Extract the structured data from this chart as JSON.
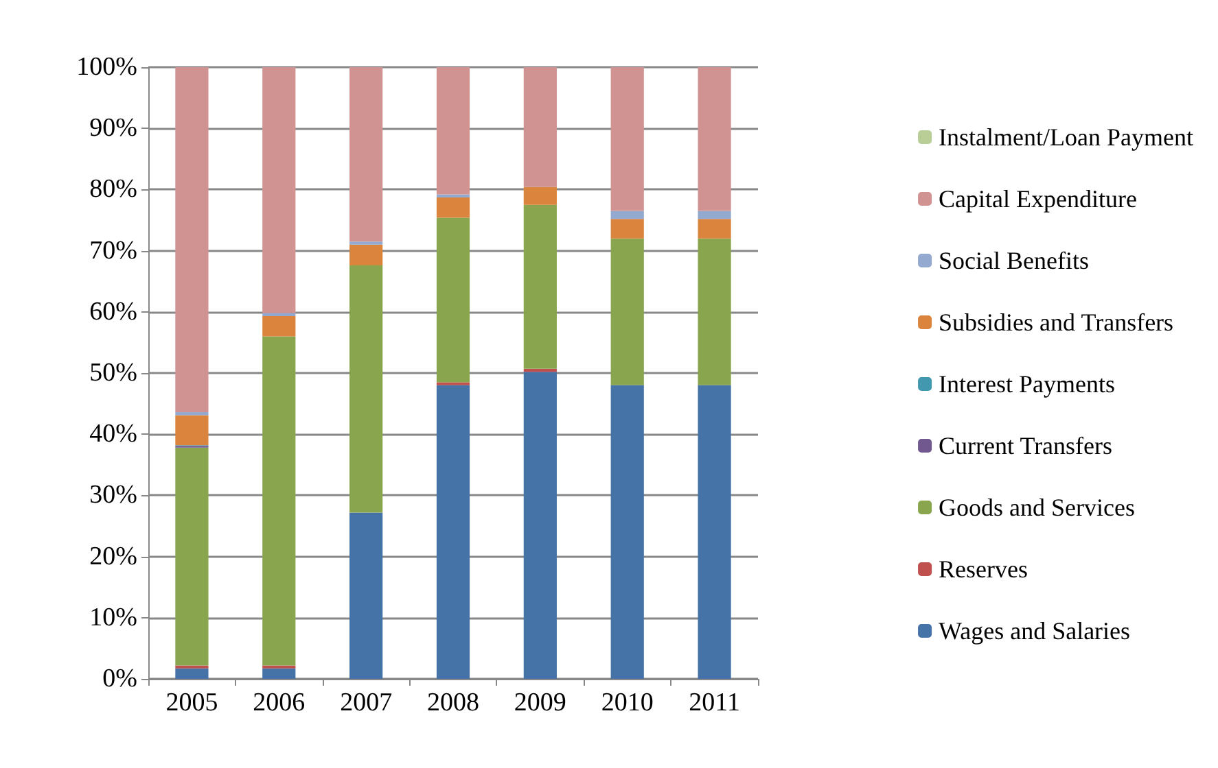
{
  "chart_data": {
    "type": "bar",
    "stacked": true,
    "categories": [
      "2005",
      "2006",
      "2007",
      "2008",
      "2009",
      "2010",
      "2011"
    ],
    "series": [
      {
        "name": "Wages and Salaries",
        "color": "#4572a7",
        "values": [
          1.7,
          1.7,
          27.2,
          48,
          50.2,
          48,
          48
        ]
      },
      {
        "name": "Reserves",
        "color": "#c0504d",
        "values": [
          0.5,
          0.5,
          0,
          0.5,
          0.5,
          0,
          0
        ]
      },
      {
        "name": "Goods and Services",
        "color": "#89a54e",
        "values": [
          35.6,
          53.8,
          40.4,
          26.9,
          26.8,
          24,
          24
        ]
      },
      {
        "name": "Current Transfers",
        "color": "#71588f",
        "values": [
          0.3,
          0,
          0,
          0,
          0,
          0,
          0
        ]
      },
      {
        "name": "Interest Payments",
        "color": "#4198af",
        "values": [
          0.1,
          0,
          0,
          0,
          0,
          0,
          0
        ]
      },
      {
        "name": "Subsidies and Transfers",
        "color": "#db843d",
        "values": [
          4.9,
          3.3,
          3.4,
          3.3,
          2.9,
          3.2,
          3.2
        ]
      },
      {
        "name": "Social Benefits",
        "color": "#93a9cf",
        "values": [
          0.5,
          0.5,
          0.5,
          0.5,
          0,
          1.3,
          1.3
        ]
      },
      {
        "name": "Capital Expenditure",
        "color": "#d19392",
        "values": [
          56.4,
          40.2,
          28.5,
          20.8,
          19.6,
          23.5,
          23.5
        ]
      },
      {
        "name": "Instalment/Loan Payment",
        "color": "#b9cd96",
        "values": [
          0,
          0,
          0,
          0,
          0,
          0,
          0
        ]
      }
    ],
    "ylim": [
      0,
      100
    ],
    "yticks": [
      {
        "value": 0,
        "label": "0%"
      },
      {
        "value": 10,
        "label": "10%"
      },
      {
        "value": 20,
        "label": "20%"
      },
      {
        "value": 30,
        "label": "30%"
      },
      {
        "value": 40,
        "label": "40%"
      },
      {
        "value": 50,
        "label": "50%"
      },
      {
        "value": 60,
        "label": "60%"
      },
      {
        "value": 70,
        "label": "70%"
      },
      {
        "value": 80,
        "label": "80%"
      },
      {
        "value": 90,
        "label": "90%"
      },
      {
        "value": 100,
        "label": "100%"
      }
    ],
    "grid": "y",
    "legend": "right"
  }
}
